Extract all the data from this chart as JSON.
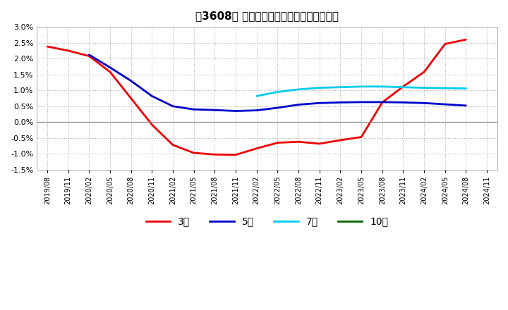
{
  "title": "［3608］ 経常利益マージンの平均値の推移",
  "background_color": "#ffffff",
  "plot_bg_color": "#ffffff",
  "grid_color": "#aaaaaa",
  "ylim": [
    -1.5,
    3.0
  ],
  "yticks": [
    -1.5,
    -1.0,
    -0.5,
    0.0,
    0.5,
    1.0,
    1.5,
    2.0,
    2.5,
    3.0
  ],
  "series": {
    "3yr": {
      "color": "#ee0000",
      "label": "3年",
      "points": [
        [
          "2019-08",
          2.38
        ],
        [
          "2019-11",
          2.25
        ],
        [
          "2020-02",
          2.08
        ],
        [
          "2020-05",
          1.58
        ],
        [
          "2020-08",
          0.75
        ],
        [
          "2020-11",
          -0.08
        ],
        [
          "2021-02",
          -0.72
        ],
        [
          "2021-05",
          -0.97
        ],
        [
          "2021-08",
          -1.02
        ],
        [
          "2021-11",
          -1.03
        ],
        [
          "2022-02",
          -0.83
        ],
        [
          "2022-05",
          -0.65
        ],
        [
          "2022-08",
          -0.62
        ],
        [
          "2022-11",
          -0.68
        ],
        [
          "2023-02",
          -0.57
        ],
        [
          "2023-05",
          -0.47
        ],
        [
          "2023-08",
          0.62
        ],
        [
          "2023-11",
          1.12
        ],
        [
          "2024-02",
          1.58
        ],
        [
          "2024-05",
          2.46
        ],
        [
          "2024-08",
          2.6
        ],
        [
          "2024-11",
          null
        ]
      ]
    },
    "5yr": {
      "color": "#0000cc",
      "label": "5年",
      "points": [
        [
          "2019-08",
          null
        ],
        [
          "2019-11",
          null
        ],
        [
          "2020-02",
          2.12
        ],
        [
          "2020-05",
          1.72
        ],
        [
          "2020-08",
          1.3
        ],
        [
          "2020-11",
          0.82
        ],
        [
          "2021-02",
          0.5
        ],
        [
          "2021-05",
          0.4
        ],
        [
          "2021-08",
          0.38
        ],
        [
          "2021-11",
          0.35
        ],
        [
          "2022-02",
          0.37
        ],
        [
          "2022-05",
          0.45
        ],
        [
          "2022-08",
          0.55
        ],
        [
          "2022-11",
          0.6
        ],
        [
          "2023-02",
          0.62
        ],
        [
          "2023-05",
          0.63
        ],
        [
          "2023-08",
          0.63
        ],
        [
          "2023-11",
          0.62
        ],
        [
          "2024-02",
          0.6
        ],
        [
          "2024-05",
          0.56
        ],
        [
          "2024-08",
          0.52
        ],
        [
          "2024-11",
          null
        ]
      ]
    },
    "7yr": {
      "color": "#00ccee",
      "label": "7年",
      "points": [
        [
          "2019-08",
          null
        ],
        [
          "2019-11",
          null
        ],
        [
          "2020-02",
          null
        ],
        [
          "2020-05",
          null
        ],
        [
          "2020-08",
          null
        ],
        [
          "2020-11",
          null
        ],
        [
          "2021-02",
          null
        ],
        [
          "2021-05",
          null
        ],
        [
          "2021-08",
          null
        ],
        [
          "2021-11",
          null
        ],
        [
          "2022-02",
          0.82
        ],
        [
          "2022-05",
          0.95
        ],
        [
          "2022-08",
          1.03
        ],
        [
          "2022-11",
          1.08
        ],
        [
          "2023-02",
          1.1
        ],
        [
          "2023-05",
          1.12
        ],
        [
          "2023-08",
          1.12
        ],
        [
          "2023-11",
          1.1
        ],
        [
          "2024-02",
          1.08
        ],
        [
          "2024-05",
          1.07
        ],
        [
          "2024-08",
          1.06
        ],
        [
          "2024-11",
          null
        ]
      ]
    },
    "10yr": {
      "color": "#006600",
      "label": "10年",
      "points": [
        [
          "2019-08",
          null
        ],
        [
          "2019-11",
          null
        ],
        [
          "2020-02",
          null
        ],
        [
          "2020-05",
          null
        ],
        [
          "2020-08",
          null
        ],
        [
          "2020-11",
          null
        ],
        [
          "2021-02",
          null
        ],
        [
          "2021-05",
          null
        ],
        [
          "2021-08",
          null
        ],
        [
          "2021-11",
          null
        ],
        [
          "2022-02",
          null
        ],
        [
          "2022-05",
          null
        ],
        [
          "2022-08",
          null
        ],
        [
          "2022-11",
          null
        ],
        [
          "2023-02",
          null
        ],
        [
          "2023-05",
          null
        ],
        [
          "2023-08",
          null
        ],
        [
          "2023-11",
          null
        ],
        [
          "2024-02",
          null
        ],
        [
          "2024-05",
          null
        ],
        [
          "2024-08",
          null
        ],
        [
          "2024-11",
          null
        ]
      ]
    }
  },
  "x_tick_labels": [
    "2019/08",
    "2019/11",
    "2020/02",
    "2020/05",
    "2020/08",
    "2020/11",
    "2021/02",
    "2021/05",
    "2021/08",
    "2021/11",
    "2022/02",
    "2022/05",
    "2022/08",
    "2022/11",
    "2023/02",
    "2023/05",
    "2023/08",
    "2023/11",
    "2024/02",
    "2024/05",
    "2024/08",
    "2024/11"
  ]
}
